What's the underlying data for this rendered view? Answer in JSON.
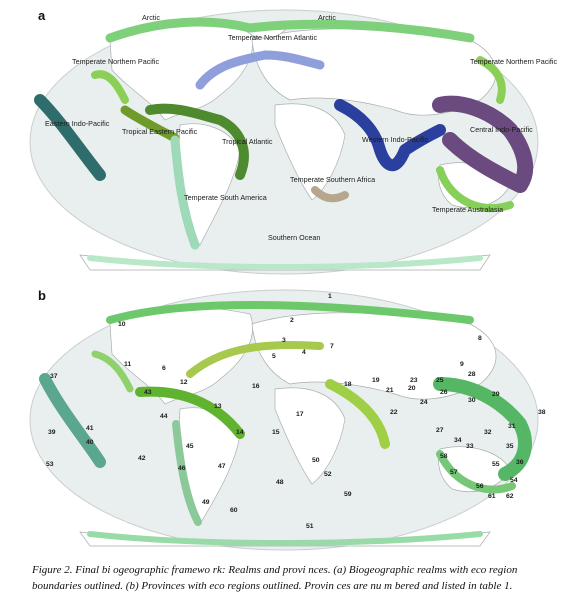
{
  "panels": {
    "a": {
      "letter": "a",
      "realm_labels": [
        "Arctic",
        "Arctic",
        "Temperate Northern Pacific",
        "Temperate Northern Atlantic",
        "Temperate Northern Pacific",
        "Eastern Indo-Pacific",
        "Tropical Eastern Pacific",
        "Tropical Atlantic",
        "Western Indo-Pacific",
        "Central Indo-Pacific",
        "Temperate South America",
        "Temperate Southern Africa",
        "Temperate Australasia",
        "Southern Ocean"
      ]
    },
    "b": {
      "letter": "b",
      "province_numbers": [
        "1",
        "2",
        "3",
        "4",
        "5",
        "6",
        "7",
        "8",
        "9",
        "10",
        "11",
        "12",
        "13",
        "14",
        "15",
        "16",
        "17",
        "18",
        "19",
        "20",
        "21",
        "22",
        "23",
        "24",
        "25",
        "26",
        "27",
        "28",
        "29",
        "30",
        "31",
        "32",
        "33",
        "34",
        "35",
        "36",
        "37",
        "38",
        "39",
        "40",
        "41",
        "42",
        "43",
        "44",
        "45",
        "46",
        "47",
        "48",
        "49",
        "50",
        "51",
        "52",
        "53",
        "54",
        "55",
        "56",
        "57",
        "58",
        "59",
        "60",
        "61",
        "62"
      ]
    }
  },
  "colors": {
    "ocean": "#e9efee",
    "land": "#ffffff",
    "coast": "#9aa0a0",
    "arctic": "#7fd07a",
    "temperate_north_pacific": "#8ccf57",
    "temperate_north_atlantic": "#8f9fdc",
    "tropical_atlantic": "#4e8a2e",
    "tropical_eastern_pacific": "#6e9b2c",
    "eastern_indo_pacific": "#2f6d6c",
    "western_indo_pacific": "#2a3f9e",
    "central_indo_pacific": "#6b4a80",
    "temperate_south_america": "#9ed9b8",
    "temperate_southern_africa": "#b7a68e",
    "temperate_australasia": "#86cf58",
    "southern_ocean": "#b9e8c8"
  },
  "caption": {
    "line1": "Figure 2. Final bi ogeographic framewo rk: Realms and provi nces. (a) Biogeographic realms with eco region",
    "line2": "boundaries outlined. (b) Provinces with eco regions outlined. Provin ces are nu m bered and listed in table 1."
  }
}
